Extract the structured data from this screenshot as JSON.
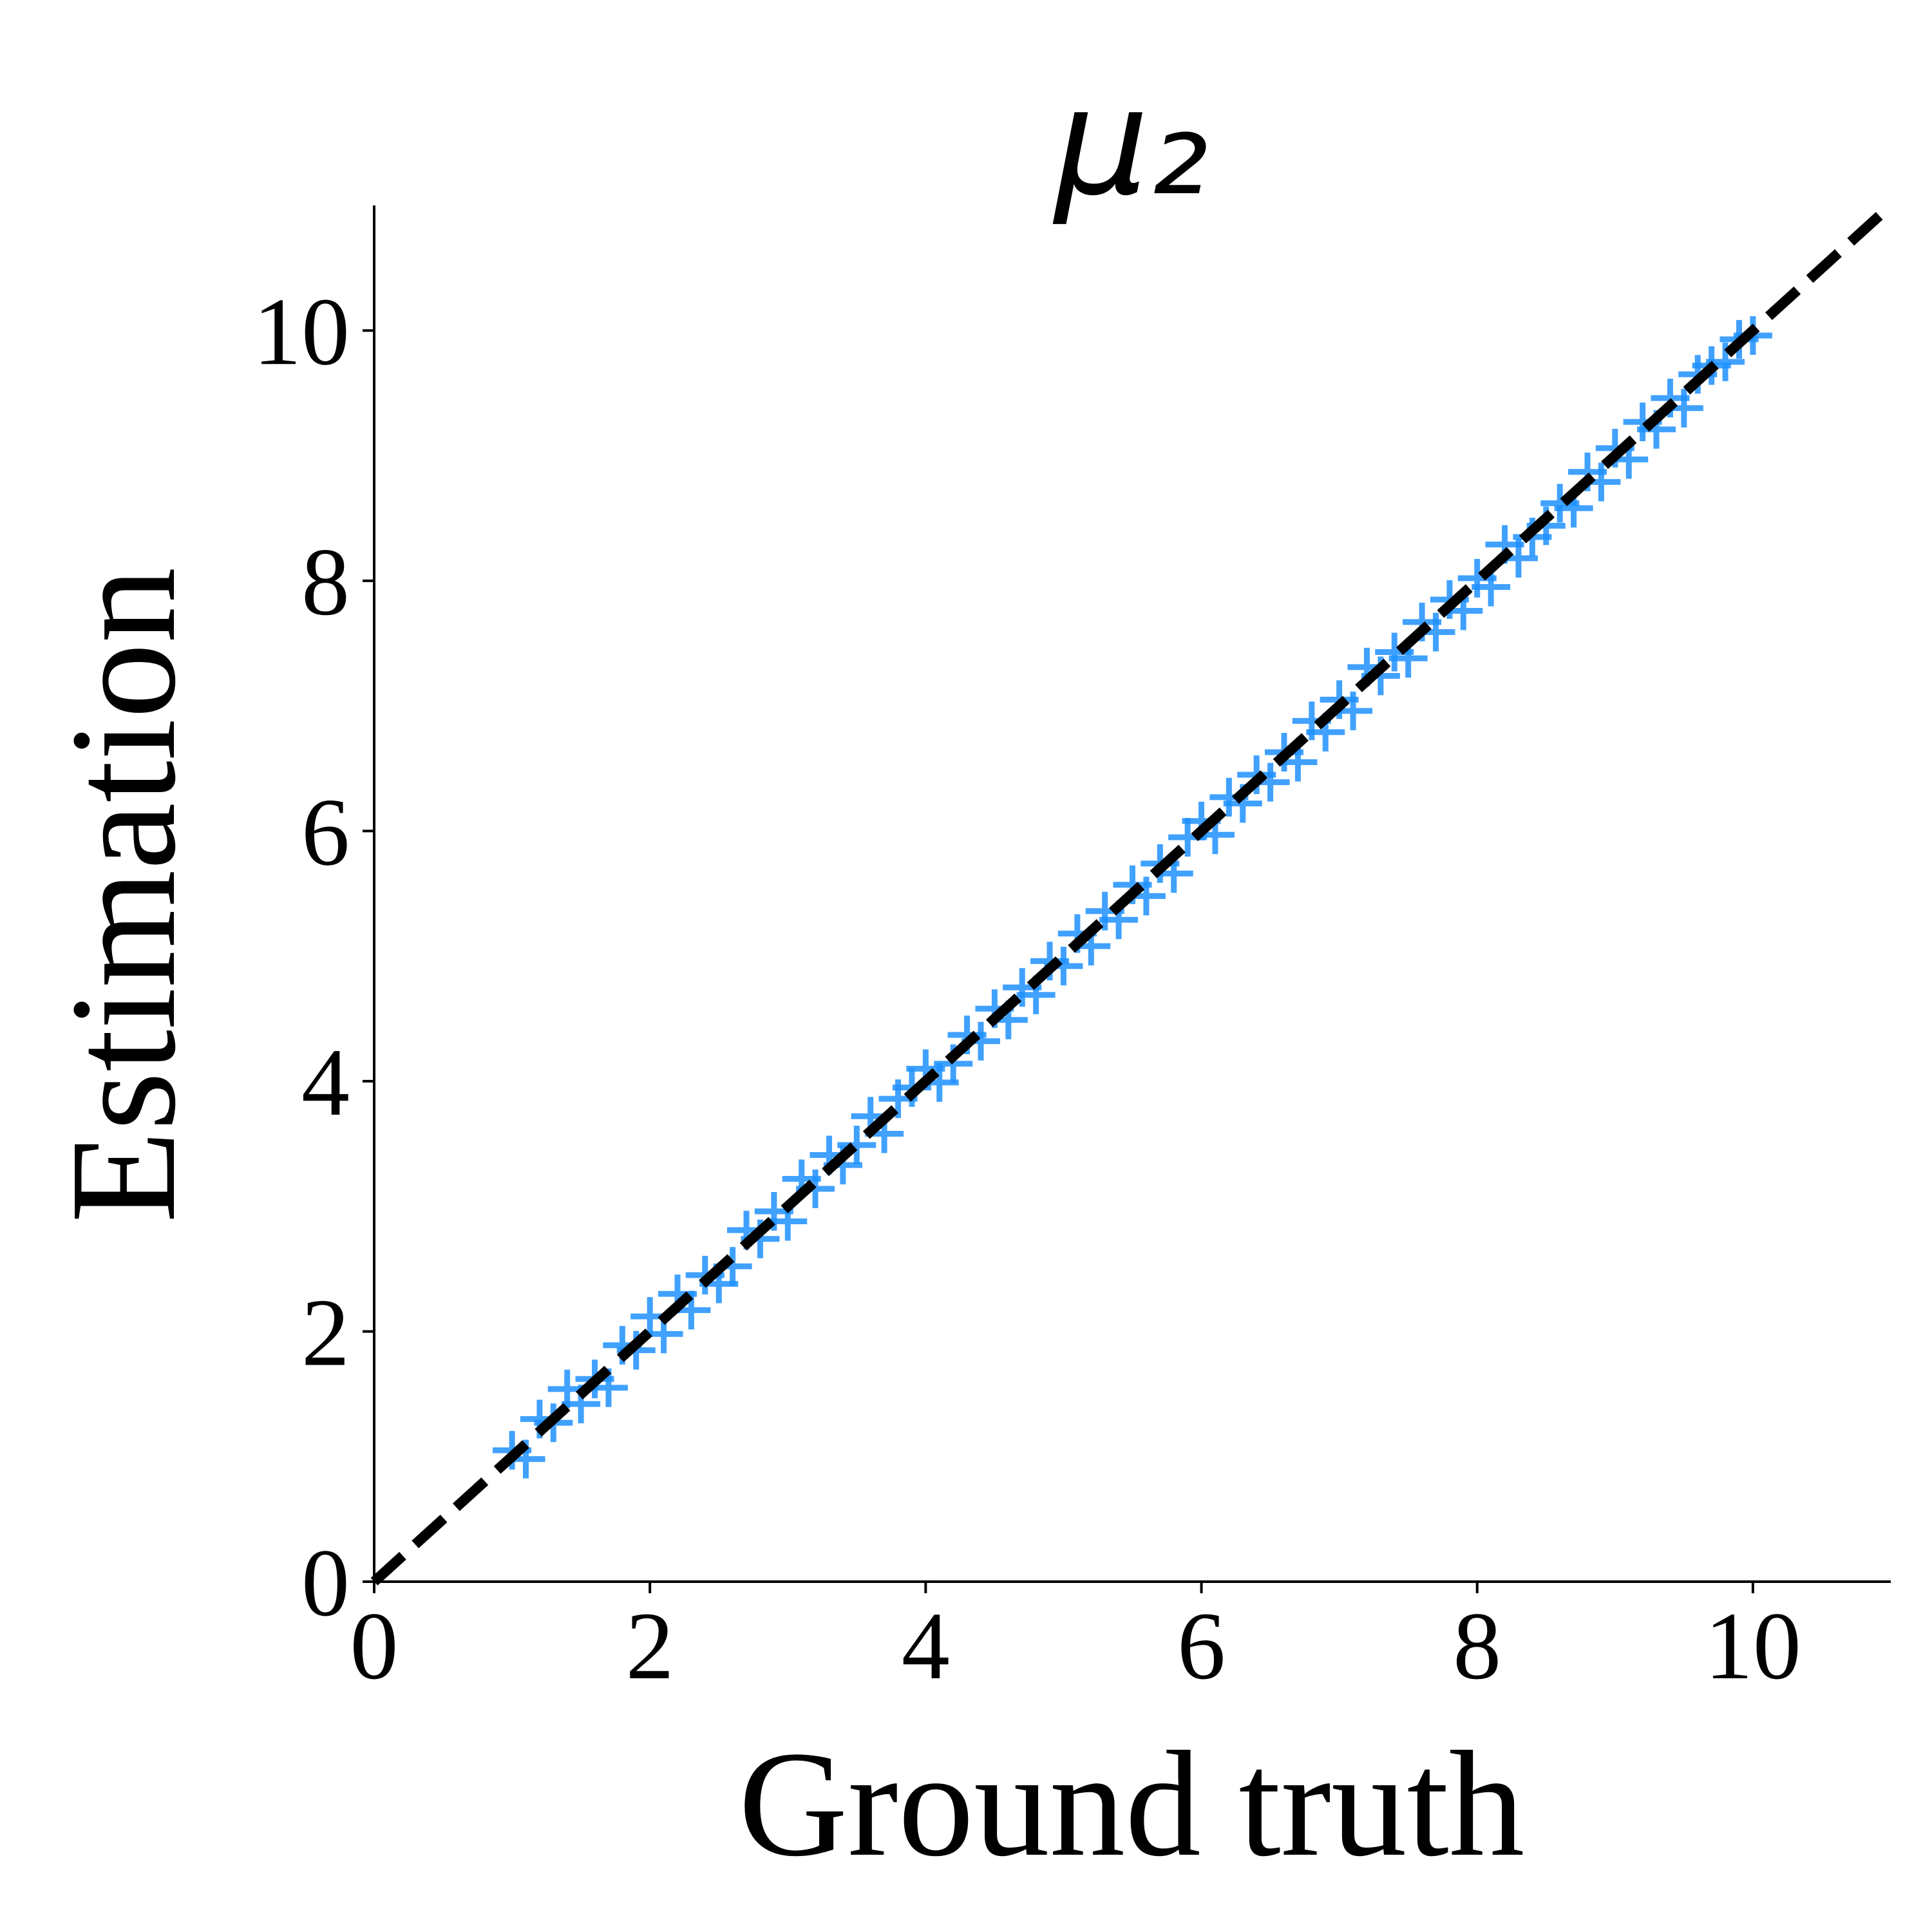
{
  "chart_data": {
    "type": "scatter",
    "title": "μ₂",
    "x_label": "Ground truth",
    "y_label": "Estimation",
    "xlim": [
      0,
      11
    ],
    "ylim": [
      0,
      11
    ],
    "xticks": [
      0,
      2,
      4,
      6,
      8,
      10
    ],
    "yticks": [
      0,
      2,
      4,
      6,
      8,
      10
    ],
    "marker": "+",
    "grid": false,
    "diagonal": {
      "x": [
        0,
        11
      ],
      "y": [
        0,
        11
      ],
      "color": "#000000"
    },
    "series": [
      {
        "color": "#1e90ff",
        "x": [
          1.0,
          1.1,
          1.2,
          1.3,
          1.4,
          1.5,
          1.6,
          1.7,
          1.8,
          1.9,
          2.0,
          2.1,
          2.2,
          2.3,
          2.4,
          2.5,
          2.6,
          2.7,
          2.8,
          2.9,
          3.0,
          3.1,
          3.2,
          3.3,
          3.4,
          3.5,
          3.6,
          3.7,
          3.8,
          3.9,
          4.0,
          4.1,
          4.2,
          4.3,
          4.4,
          4.5,
          4.6,
          4.7,
          4.8,
          4.9,
          5.0,
          5.1,
          5.2,
          5.3,
          5.4,
          5.5,
          5.6,
          5.7,
          5.8,
          5.9,
          6.0,
          6.1,
          6.2,
          6.3,
          6.4,
          6.5,
          6.6,
          6.7,
          6.8,
          6.9,
          7.0,
          7.1,
          7.2,
          7.3,
          7.4,
          7.5,
          7.6,
          7.7,
          7.8,
          7.9,
          8.0,
          8.1,
          8.2,
          8.3,
          8.4,
          8.5,
          8.6,
          8.7,
          8.8,
          8.9,
          9.0,
          9.1,
          9.2,
          9.3,
          9.4,
          9.5,
          9.6,
          9.7,
          9.8,
          9.9,
          10.0
        ],
        "values": [
          1.05,
          0.98,
          1.3,
          1.27,
          1.54,
          1.42,
          1.62,
          1.55,
          1.89,
          1.85,
          2.12,
          1.98,
          2.3,
          2.17,
          2.45,
          2.38,
          2.52,
          2.81,
          2.74,
          2.96,
          2.88,
          3.22,
          3.14,
          3.41,
          3.33,
          3.49,
          3.72,
          3.58,
          3.86,
          3.95,
          4.1,
          3.99,
          4.14,
          4.37,
          4.32,
          4.58,
          4.49,
          4.75,
          4.69,
          4.96,
          4.92,
          5.18,
          5.08,
          5.36,
          5.29,
          5.57,
          5.48,
          5.74,
          5.66,
          5.95,
          6.08,
          5.97,
          6.27,
          6.22,
          6.45,
          6.39,
          6.63,
          6.55,
          6.88,
          6.79,
          7.05,
          6.96,
          7.31,
          7.24,
          7.43,
          7.38,
          7.67,
          7.59,
          7.85,
          7.76,
          8.02,
          7.95,
          8.29,
          8.18,
          8.35,
          8.44,
          8.62,
          8.58,
          8.87,
          8.79,
          9.06,
          8.97,
          9.27,
          9.21,
          9.46,
          9.38,
          9.65,
          9.72,
          9.75,
          9.93,
          9.96
        ]
      }
    ]
  }
}
